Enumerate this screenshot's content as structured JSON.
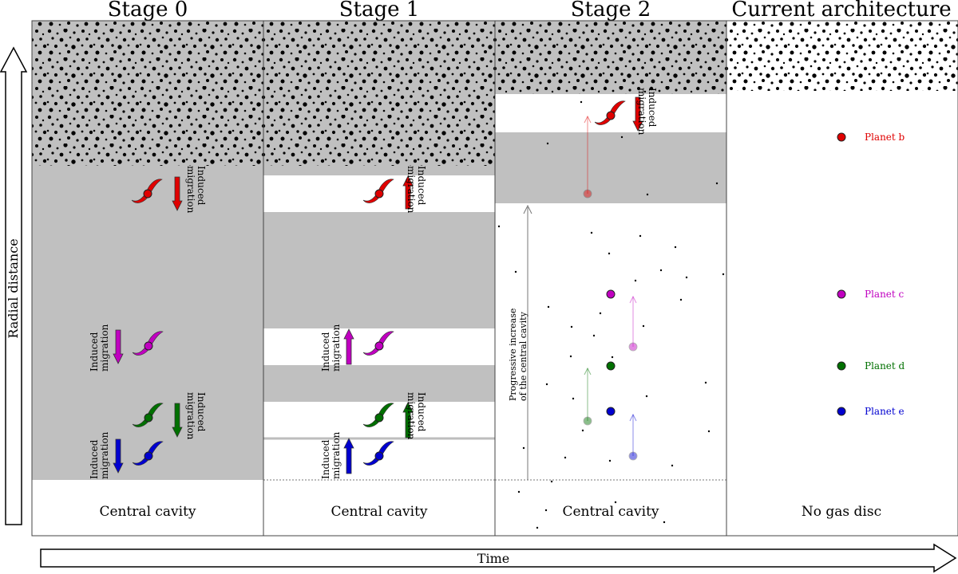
{
  "time_axis_label": "Time",
  "radial_axis_label": "Radial distance",
  "migration_label_line1": "Induced",
  "migration_label_line2": "migration",
  "colors": {
    "gas": "#c0c0c0",
    "b": "#e00000",
    "c": "#c000c0",
    "d": "#007000",
    "e": "#0000d0",
    "grey_arrow": "#777777"
  },
  "stages": [
    {
      "title": "Stage 0",
      "bottom_label": "Central cavity",
      "migrations": [
        {
          "planet": "b",
          "direction": "inward"
        },
        {
          "planet": "c",
          "direction": "inward"
        },
        {
          "planet": "d",
          "direction": "inward"
        },
        {
          "planet": "e",
          "direction": "inward"
        }
      ]
    },
    {
      "title": "Stage 1",
      "bottom_label": "Central cavity",
      "migrations": [
        {
          "planet": "b",
          "direction": "outward"
        },
        {
          "planet": "c",
          "direction": "outward"
        },
        {
          "planet": "d",
          "direction": "outward"
        },
        {
          "planet": "e",
          "direction": "outward"
        }
      ]
    },
    {
      "title": "Stage 2",
      "bottom_label": "Central cavity",
      "cavity_note_line1": "Progressive increase",
      "cavity_note_line2": "of the central cavity",
      "migrations": [
        {
          "planet": "b",
          "direction": "inward"
        }
      ]
    },
    {
      "title": "Current architecture",
      "bottom_label": "No gas disc",
      "planets": [
        {
          "key": "b",
          "label": "Planet b"
        },
        {
          "key": "c",
          "label": "Planet c"
        },
        {
          "key": "d",
          "label": "Planet d"
        },
        {
          "key": "e",
          "label": "Planet e"
        }
      ]
    }
  ]
}
